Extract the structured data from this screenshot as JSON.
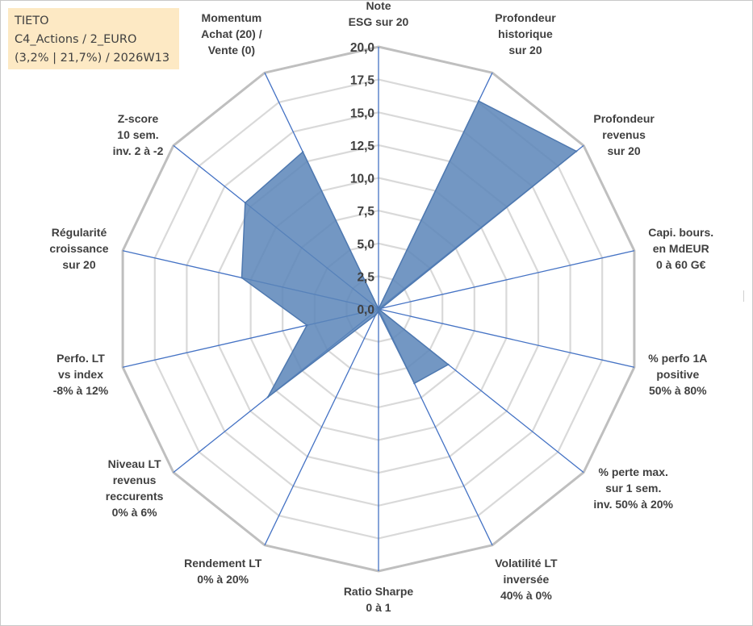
{
  "info": {
    "line1": "TIETO",
    "line2": "C4_Actions / 2_EURO",
    "line3": "(3,2% | 21,7%) / 2026W13"
  },
  "chart_data": {
    "type": "radar",
    "rmin": 0,
    "rmax": 20,
    "ticks": [
      "0,0",
      "2,5",
      "5,0",
      "7,5",
      "10,0",
      "12,5",
      "15,0",
      "17,5",
      "20,0"
    ],
    "grid": true,
    "axes": [
      [
        "Note",
        "ESG sur 20"
      ],
      [
        "Profondeur",
        "historique",
        "sur 20"
      ],
      [
        "Profondeur",
        "revenus",
        "sur 20"
      ],
      [
        "Capi. bours.",
        "en MdEUR",
        "0 à 60 G€"
      ],
      [
        "% perfo 1A",
        "positive",
        "50% à 80%"
      ],
      [
        "% perte max.",
        "sur 1 sem.",
        "inv. 50% à 20%"
      ],
      [
        "Volatilité LT",
        "inversée",
        "40% à 0%"
      ],
      [
        "Ratio Sharpe",
        "0 à 1"
      ],
      [
        "Rendement LT",
        "0% à 20%"
      ],
      [
        "Niveau LT",
        "revenus",
        "reccurents",
        "0% à 6%"
      ],
      [
        "Perfo. LT",
        "vs index",
        "-8% à 12%"
      ],
      [
        "Régularité",
        "croissance",
        "sur 20"
      ],
      [
        "Z-score",
        "10 sem.",
        "inv. 2 à -2"
      ],
      [
        "Momentum",
        "Achat (20) /",
        "Vente (0)"
      ]
    ],
    "values": [
      0,
      17.6,
      19.3,
      0.2,
      0,
      6.8,
      6.3,
      0.2,
      0.5,
      10.8,
      5.6,
      10.7,
      13.0,
      13.3
    ],
    "series_color": "#5b85b8"
  }
}
